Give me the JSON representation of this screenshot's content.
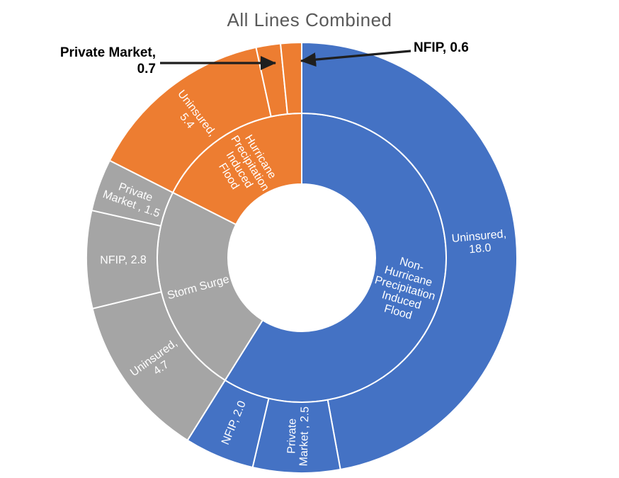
{
  "title": "All Lines Combined",
  "chart_data": {
    "type": "pie",
    "variant": "sunburst-doughnut-two-rings",
    "title": "All Lines Combined",
    "total": 38.2,
    "start_angle_deg": 0,
    "direction": "clockwise-from-top",
    "legend_position": "none",
    "inner_ring": [
      {
        "label": "Non-Hurricane Precipitation Induced Flood",
        "value": 22.5,
        "color": "#4472C4",
        "label_lines": [
          "Non-",
          "Hurricane",
          "Precipitation",
          "Induced",
          "Flood"
        ]
      },
      {
        "label": "Storm Surge",
        "value": 9.0,
        "color": "#A5A5A5",
        "label_lines": [
          "Storm Surge"
        ]
      },
      {
        "label": "Hurricane Precipitation Induced Flood",
        "value": 6.7,
        "color": "#ED7D31",
        "label_lines": [
          "Hurricane",
          "Precipitation",
          "Induced",
          "Flood"
        ]
      }
    ],
    "outer_ring": [
      {
        "parent": "Non-Hurricane Precipitation Induced Flood",
        "label": "Uninsured",
        "value": 18.0,
        "color": "#4472C4",
        "label_lines": [
          "Uninsured,",
          "18.0"
        ],
        "callout": false
      },
      {
        "parent": "Non-Hurricane Precipitation Induced Flood",
        "label": "Private Market",
        "value": 2.5,
        "color": "#4472C4",
        "label_lines": [
          "Private",
          "Market , 2.5"
        ],
        "callout": false
      },
      {
        "parent": "Non-Hurricane Precipitation Induced Flood",
        "label": "NFIP",
        "value": 2.0,
        "color": "#4472C4",
        "label_lines": [
          "NFIP, 2.0"
        ],
        "callout": false
      },
      {
        "parent": "Storm Surge",
        "label": "Uninsured",
        "value": 4.7,
        "color": "#A5A5A5",
        "label_lines": [
          "Uninsured,",
          "4.7"
        ],
        "callout": false
      },
      {
        "parent": "Storm Surge",
        "label": "NFIP",
        "value": 2.8,
        "color": "#A5A5A5",
        "label_lines": [
          "NFIP, 2.8"
        ],
        "callout": false
      },
      {
        "parent": "Storm Surge",
        "label": "Private Market",
        "value": 1.5,
        "color": "#A5A5A5",
        "label_lines": [
          "Private",
          "Market , 1.5"
        ],
        "callout": false
      },
      {
        "parent": "Hurricane Precipitation Induced Flood",
        "label": "Uninsured",
        "value": 5.4,
        "color": "#ED7D31",
        "label_lines": [
          "Uninsured,",
          "5.4"
        ],
        "callout": false
      },
      {
        "parent": "Hurricane Precipitation Induced Flood",
        "label": "Private Market",
        "value": 0.7,
        "color": "#ED7D31",
        "label_lines": [],
        "callout": true
      },
      {
        "parent": "Hurricane Precipitation Induced Flood",
        "label": "NFIP",
        "value": 0.6,
        "color": "#ED7D31",
        "label_lines": [],
        "callout": true
      }
    ],
    "callouts": [
      {
        "target": "Private Market",
        "value": 0.7,
        "lines": [
          "Private Market,",
          "0.7"
        ]
      },
      {
        "target": "NFIP",
        "value": 0.6,
        "text": "NFIP, 0.6"
      }
    ]
  },
  "styles": {
    "title_color": "#595959",
    "label_color": "#FFFFFF",
    "callout_color": "#000000",
    "arrow_color": "#1F1F1F",
    "divider_color": "#FFFFFF",
    "background_color": "#FFFFFF"
  }
}
